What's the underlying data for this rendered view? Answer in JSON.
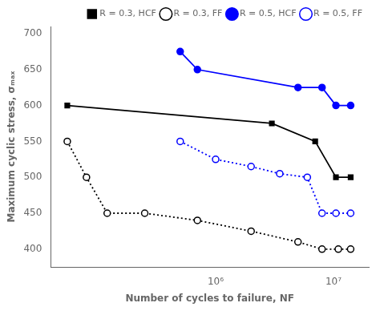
{
  "chart_data": {
    "type": "line",
    "x_label": "Number of cycles to failure, NF",
    "y_label": "Maximum cyclic stress, σₘₐₓ",
    "log": "x",
    "xlim": [
      39810.71705534973,
      19952623.149688795
    ],
    "xticks": [
      {
        "value": 1000000,
        "label": "10⁶"
      },
      {
        "value": 10000000,
        "label": "10⁷"
      }
    ],
    "ylim": [
      375,
      710
    ],
    "yticks": [
      400,
      450,
      500,
      550,
      600,
      650,
      700
    ],
    "grid": false,
    "legend": "upper right",
    "series": [
      {
        "name": "R = 0.3, HCF",
        "color": "black",
        "marker": "square",
        "line_style": "solid",
        "x": [
          55000,
          3000000,
          7000000,
          10500000,
          14000000
        ],
        "values": [
          600,
          575,
          550,
          500,
          500
        ]
      },
      {
        "name": "R = 0.3, FF",
        "color": "black",
        "marker": "open_circle",
        "line_style": "dotted",
        "x": [
          55000,
          80000,
          120000,
          250000,
          700000,
          2000000,
          5000000,
          8000000,
          11000000,
          14000000
        ],
        "values": [
          550,
          500,
          450,
          450,
          440,
          425,
          410,
          400,
          400,
          400
        ]
      },
      {
        "name": "R = 0.5, HCF",
        "color": "blue",
        "marker": "circle",
        "line_style": "solid",
        "x": [
          500000,
          700000,
          5000000,
          8000000,
          10500000,
          14000000
        ],
        "values": [
          675,
          650,
          625,
          625,
          600,
          600
        ]
      },
      {
        "name": "R = 0.5, FF",
        "color": "blue",
        "marker": "open_circle",
        "line_style": "dotted",
        "x": [
          500000,
          1000000,
          2000000,
          3500000,
          6000000,
          8000000,
          10500000,
          14000000
        ],
        "values": [
          550,
          525,
          515,
          505,
          500,
          450,
          450,
          450
        ]
      }
    ]
  }
}
